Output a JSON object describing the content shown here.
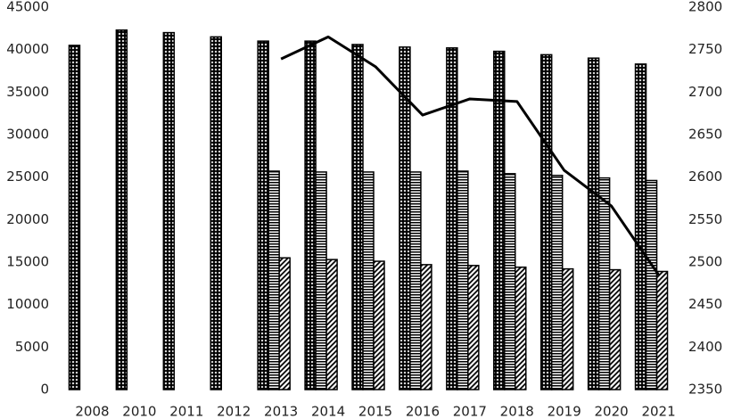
{
  "chart_data": {
    "type": "bar",
    "categories": [
      "2008",
      "2010",
      "2011",
      "2012",
      "2013",
      "2014",
      "2015",
      "2016",
      "2017",
      "2018",
      "2019",
      "2020",
      "2021"
    ],
    "series": [
      {
        "color": "#000000",
        "pattern": "crosshatch",
        "values": [
          40500,
          42300,
          42000,
          41500,
          41000,
          41000,
          40600,
          40300,
          40200,
          39800,
          39400,
          39000,
          38300
        ]
      },
      {
        "color": "#000000",
        "pattern": "horizontal",
        "values": [
          null,
          null,
          null,
          null,
          25700,
          25600,
          25600,
          25600,
          25700,
          25400,
          25200,
          24900,
          24600
        ]
      },
      {
        "color": "#000000",
        "pattern": "diagonal",
        "values": [
          null,
          null,
          null,
          null,
          15500,
          15300,
          15100,
          14700,
          14600,
          14400,
          14200,
          14100,
          13900
        ]
      },
      {
        "type": "line",
        "axis": "y2",
        "color": "#000000",
        "values": [
          null,
          null,
          null,
          null,
          2739,
          2765,
          2730,
          2673,
          2692,
          2689,
          2608,
          2566,
          2485
        ]
      }
    ],
    "ylim": [
      0,
      45000
    ],
    "yticks": [
      0,
      5000,
      10000,
      15000,
      20000,
      25000,
      30000,
      35000,
      40000,
      45000
    ],
    "y2lim": [
      2350,
      2800
    ],
    "y2ticks": [
      2350,
      2400,
      2450,
      2500,
      2550,
      2600,
      2650,
      2700,
      2750,
      2800
    ],
    "grid": false
  }
}
